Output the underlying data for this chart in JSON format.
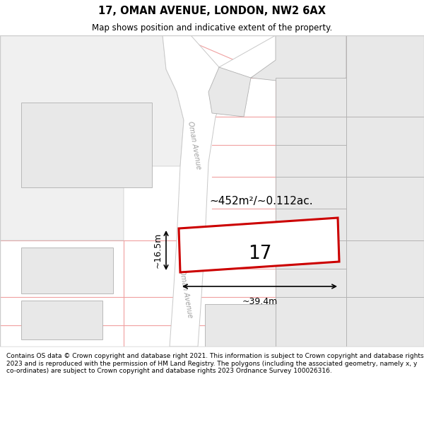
{
  "title": "17, OMAN AVENUE, LONDON, NW2 6AX",
  "subtitle": "Map shows position and indicative extent of the property.",
  "footer": "Contains OS data © Crown copyright and database right 2021. This information is subject to Crown copyright and database rights 2023 and is reproduced with the permission of HM Land Registry. The polygons (including the associated geometry, namely x, y co-ordinates) are subject to Crown copyright and database rights 2023 Ordnance Survey 100026316.",
  "map_bg": "#ffffff",
  "road_color": "#ffffff",
  "building_fill": "#e8e8e8",
  "building_outline": "#b0b0b0",
  "road_outline": "#c8c8c8",
  "cadastral_red": "#f0a0a0",
  "highlight_fill": "#ffffff",
  "highlight_outline": "#cc0000",
  "highlight_lw": 2.2,
  "label_number": "17",
  "area_label": "~452m²/~0.112ac.",
  "width_label": "~39.4m",
  "height_label": "~16.5m",
  "title_fontsize": 10.5,
  "subtitle_fontsize": 8.5,
  "footer_fontsize": 6.5
}
